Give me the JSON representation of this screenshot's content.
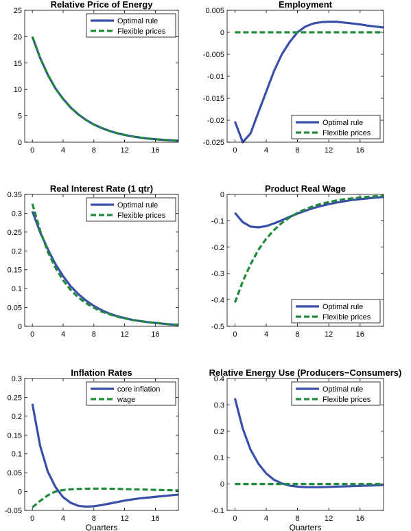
{
  "chart_data": [
    {
      "type": "line",
      "title": "Relative Price of Energy",
      "xlabel": "",
      "xlim": [
        -1,
        19
      ],
      "ylim": [
        0,
        25
      ],
      "xticks": [
        0,
        4,
        8,
        12,
        16
      ],
      "yticks": [
        0,
        5,
        10,
        15,
        20,
        25
      ],
      "yticklabels": [
        "0",
        "5",
        "10",
        "15",
        "20",
        "25"
      ],
      "legend": "top-right",
      "x": [
        0,
        1,
        2,
        3,
        4,
        5,
        6,
        7,
        8,
        9,
        10,
        11,
        12,
        13,
        14,
        15,
        16,
        17,
        18,
        19
      ],
      "series": [
        {
          "name": "Optimal rule",
          "color": "#3a4fa8",
          "style": "solid",
          "values": [
            20.0,
            16.0,
            12.8,
            10.2,
            8.2,
            6.55,
            5.25,
            4.2,
            3.35,
            2.7,
            2.15,
            1.72,
            1.38,
            1.1,
            0.88,
            0.7,
            0.56,
            0.45,
            0.36,
            0.29
          ]
        },
        {
          "name": "Flexible prices",
          "color": "#1e8a3a",
          "style": "dashed",
          "values": [
            20.0,
            16.0,
            12.8,
            10.2,
            8.2,
            6.55,
            5.25,
            4.2,
            3.35,
            2.7,
            2.15,
            1.72,
            1.38,
            1.1,
            0.88,
            0.7,
            0.56,
            0.45,
            0.36,
            0.29
          ]
        }
      ]
    },
    {
      "type": "line",
      "title": "Employment",
      "xlabel": "",
      "xlim": [
        -1,
        19
      ],
      "ylim": [
        -0.025,
        0.005
      ],
      "xticks": [
        0,
        4,
        8,
        12,
        16
      ],
      "yticks": [
        -0.025,
        -0.02,
        -0.015,
        -0.01,
        -0.005,
        0,
        0.005
      ],
      "yticklabels": [
        "-0.025",
        "-0.02",
        "-0.015",
        "-0.01",
        "-0.005",
        "0",
        "0.005"
      ],
      "legend": "bottom-right",
      "x": [
        0,
        1,
        2,
        3,
        4,
        5,
        6,
        7,
        8,
        9,
        10,
        11,
        12,
        13,
        14,
        15,
        16,
        17,
        18,
        19
      ],
      "series": [
        {
          "name": "Optimal rule",
          "color": "#3a4fa8",
          "style": "solid",
          "values": [
            -0.0203,
            -0.025,
            -0.023,
            -0.0182,
            -0.0135,
            -0.0088,
            -0.005,
            -0.0022,
            0.0,
            0.0013,
            0.002,
            0.0023,
            0.0024,
            0.0024,
            0.0022,
            0.002,
            0.0018,
            0.0015,
            0.0013,
            0.0011
          ]
        },
        {
          "name": "Flexible prices",
          "color": "#1e8a3a",
          "style": "dashed",
          "values": [
            0,
            0,
            0,
            0,
            0,
            0,
            0,
            0,
            0,
            0,
            0,
            0,
            0,
            0,
            0,
            0,
            0,
            0,
            0,
            0
          ]
        }
      ]
    },
    {
      "type": "line",
      "title": "Real Interest Rate (1 qtr)",
      "xlabel": "",
      "xlim": [
        -1,
        19
      ],
      "ylim": [
        0,
        0.35
      ],
      "xticks": [
        0,
        4,
        8,
        12,
        16
      ],
      "yticks": [
        0,
        0.05,
        0.1,
        0.15,
        0.2,
        0.25,
        0.3,
        0.35
      ],
      "yticklabels": [
        "0",
        "0.05",
        "0.1",
        "0.15",
        "0.2",
        "0.25",
        "0.3",
        "0.35"
      ],
      "legend": "top-right",
      "x": [
        0,
        1,
        2,
        3,
        4,
        5,
        6,
        7,
        8,
        9,
        10,
        11,
        12,
        13,
        14,
        15,
        16,
        17,
        18,
        19
      ],
      "series": [
        {
          "name": "Optimal rule",
          "color": "#3a4fa8",
          "style": "solid",
          "values": [
            0.305,
            0.25,
            0.205,
            0.165,
            0.133,
            0.106,
            0.085,
            0.068,
            0.054,
            0.043,
            0.034,
            0.027,
            0.022,
            0.017,
            0.014,
            0.011,
            0.009,
            0.007,
            0.005,
            0.004
          ]
        },
        {
          "name": "Flexible prices",
          "color": "#1e8a3a",
          "style": "dashed",
          "values": [
            0.325,
            0.255,
            0.198,
            0.155,
            0.122,
            0.096,
            0.076,
            0.061,
            0.049,
            0.039,
            0.032,
            0.026,
            0.021,
            0.017,
            0.014,
            0.011,
            0.009,
            0.007,
            0.005,
            0.004
          ]
        }
      ]
    },
    {
      "type": "line",
      "title": "Product Real Wage",
      "xlabel": "",
      "xlim": [
        -1,
        19
      ],
      "ylim": [
        -0.5,
        0
      ],
      "xticks": [
        0,
        4,
        8,
        12,
        16
      ],
      "yticks": [
        -0.5,
        -0.4,
        -0.3,
        -0.2,
        -0.1,
        0
      ],
      "yticklabels": [
        "-0.5",
        "-0.4",
        "-0.3",
        "-0.2",
        "-0.1",
        "0"
      ],
      "legend": "bottom-right",
      "x": [
        0,
        1,
        2,
        3,
        4,
        5,
        6,
        7,
        8,
        9,
        10,
        11,
        12,
        13,
        14,
        15,
        16,
        17,
        18,
        19
      ],
      "series": [
        {
          "name": "Optimal rule",
          "color": "#3a4fa8",
          "style": "solid",
          "values": [
            -0.07,
            -0.105,
            -0.122,
            -0.125,
            -0.12,
            -0.11,
            -0.098,
            -0.085,
            -0.073,
            -0.062,
            -0.052,
            -0.044,
            -0.037,
            -0.031,
            -0.026,
            -0.021,
            -0.018,
            -0.015,
            -0.012,
            -0.01
          ]
        },
        {
          "name": "Flexible prices",
          "color": "#1e8a3a",
          "style": "dashed",
          "values": [
            -0.41,
            -0.33,
            -0.265,
            -0.21,
            -0.168,
            -0.135,
            -0.108,
            -0.087,
            -0.07,
            -0.056,
            -0.045,
            -0.036,
            -0.029,
            -0.023,
            -0.018,
            -0.015,
            -0.012,
            -0.009,
            -0.007,
            -0.006
          ]
        }
      ]
    },
    {
      "type": "line",
      "title": "Inflation Rates",
      "xlabel": "Quarters",
      "xlim": [
        -1,
        19
      ],
      "ylim": [
        -0.05,
        0.3
      ],
      "xticks": [
        0,
        4,
        8,
        12,
        16
      ],
      "yticks": [
        -0.05,
        0,
        0.05,
        0.1,
        0.15,
        0.2,
        0.25,
        0.3
      ],
      "yticklabels": [
        "-0.05",
        "0",
        "0.05",
        "0.1",
        "0.15",
        "0.2",
        "0.25",
        "0.3"
      ],
      "legend": "top-right",
      "x": [
        0,
        1,
        2,
        3,
        4,
        5,
        6,
        7,
        8,
        9,
        10,
        11,
        12,
        13,
        14,
        15,
        16,
        17,
        18,
        19
      ],
      "series": [
        {
          "name": "core inflation",
          "color": "#3a4fa8",
          "style": "solid",
          "values": [
            0.233,
            0.122,
            0.053,
            0.012,
            -0.015,
            -0.03,
            -0.038,
            -0.04,
            -0.039,
            -0.036,
            -0.032,
            -0.028,
            -0.024,
            -0.021,
            -0.018,
            -0.016,
            -0.014,
            -0.012,
            -0.01,
            -0.008
          ]
        },
        {
          "name": "wage",
          "color": "#1e8a3a",
          "style": "dashed",
          "values": [
            -0.042,
            -0.025,
            -0.01,
            0.0,
            0.004,
            0.006,
            0.007,
            0.0075,
            0.0078,
            0.0078,
            0.0075,
            0.007,
            0.0065,
            0.006,
            0.0055,
            0.005,
            0.0045,
            0.004,
            0.0035,
            0.003
          ]
        }
      ]
    },
    {
      "type": "line",
      "title": "Relative Energy Use (Producers−Consumers)",
      "xlabel": "Quarters",
      "xlim": [
        -1,
        19
      ],
      "ylim": [
        -0.1,
        0.4
      ],
      "xticks": [
        0,
        4,
        8,
        12,
        16
      ],
      "yticks": [
        -0.1,
        0,
        0.1,
        0.2,
        0.3,
        0.4
      ],
      "yticklabels": [
        "-0.1",
        "0",
        "0.1",
        "0.2",
        "0.3",
        "0.4"
      ],
      "legend": "top-right",
      "x": [
        0,
        1,
        2,
        3,
        4,
        5,
        6,
        7,
        8,
        9,
        10,
        11,
        12,
        13,
        14,
        15,
        16,
        17,
        18,
        19
      ],
      "series": [
        {
          "name": "Optimal rule",
          "color": "#3a4fa8",
          "style": "solid",
          "values": [
            0.325,
            0.21,
            0.13,
            0.077,
            0.04,
            0.016,
            0.002,
            -0.006,
            -0.01,
            -0.012,
            -0.012,
            -0.012,
            -0.011,
            -0.01,
            -0.009,
            -0.008,
            -0.007,
            -0.006,
            -0.005,
            -0.004
          ]
        },
        {
          "name": "Flexible prices",
          "color": "#1e8a3a",
          "style": "dashed",
          "values": [
            0,
            0,
            0,
            0,
            0,
            0,
            0,
            0,
            0,
            0,
            0,
            0,
            0,
            0,
            0,
            0,
            0,
            0,
            0,
            0
          ]
        }
      ]
    }
  ]
}
